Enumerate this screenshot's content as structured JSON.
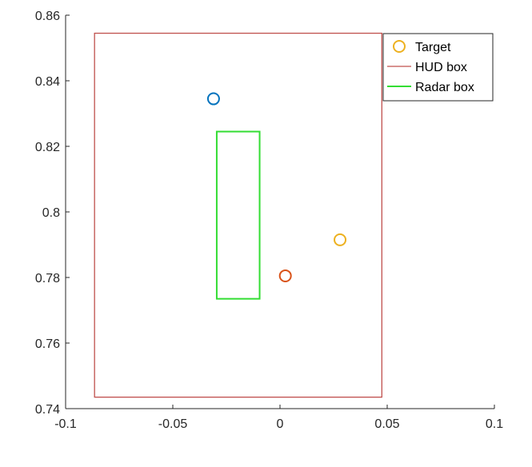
{
  "chart_data": {
    "type": "scatter",
    "xlim": [
      -0.1,
      0.1
    ],
    "ylim": [
      0.74,
      0.86
    ],
    "x_ticks": [
      {
        "value": -0.1,
        "label": "-0.1"
      },
      {
        "value": -0.05,
        "label": "-0.05"
      },
      {
        "value": 0,
        "label": "0"
      },
      {
        "value": 0.05,
        "label": "0.05"
      },
      {
        "value": 0.1,
        "label": "0.1"
      }
    ],
    "y_ticks": [
      {
        "value": 0.74,
        "label": "0.74"
      },
      {
        "value": 0.76,
        "label": "0.76"
      },
      {
        "value": 0.78,
        "label": "0.78"
      },
      {
        "value": 0.8,
        "label": "0.8"
      },
      {
        "value": 0.82,
        "label": "0.82"
      },
      {
        "value": 0.84,
        "label": "0.84"
      },
      {
        "value": 0.86,
        "label": "0.86"
      }
    ],
    "grid": false,
    "legend_position": "top-right",
    "legend": [
      {
        "label": "Target",
        "marker": "circle",
        "color": "#EDB120"
      },
      {
        "label": "HUD box",
        "marker": "line",
        "color": "#C0504D"
      },
      {
        "label": "Radar box",
        "marker": "line",
        "color": "#33DD33"
      }
    ],
    "points": [
      {
        "x": 0.028,
        "y": 0.7915,
        "color": "#EDB120"
      },
      {
        "x": -0.031,
        "y": 0.8345,
        "color": "#0072BD"
      },
      {
        "x": 0.0025,
        "y": 0.7805,
        "color": "#D95319"
      }
    ],
    "boxes": [
      {
        "label": "HUD box",
        "x": [
          -0.0865,
          0.0475
        ],
        "y": [
          0.7435,
          0.8545
        ],
        "color": "#C0504D"
      },
      {
        "label": "Radar box",
        "x": [
          -0.0295,
          -0.0095
        ],
        "y": [
          0.7735,
          0.8245
        ],
        "color": "#33DD33"
      }
    ]
  }
}
